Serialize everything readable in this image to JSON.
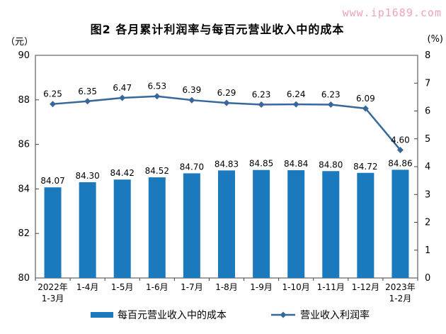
{
  "watermark": "www.ip1689.com",
  "title": "图2 各月累计利润率与每百元营业收入中的成本",
  "legend": {
    "bar_label": "每百元营业收入中的成本",
    "line_label": "营业收入利润率"
  },
  "colors": {
    "bar": "#1b7abe",
    "line": "#38689b",
    "axis": "#404040",
    "text": "#000000",
    "watermark": "#f2a3b3"
  },
  "chart_data": {
    "type": "combo",
    "title": "图2 各月累计利润率与每百元营业收入中的成本",
    "categories": [
      "2022年\n1-3月",
      "1-4月",
      "1-5月",
      "1-6月",
      "1-7月",
      "1-8月",
      "1-9月",
      "1-10月",
      "1-11月",
      "1-12月",
      "2023年\n1-2月"
    ],
    "series": [
      {
        "name": "每百元营业收入中的成本",
        "type": "bar",
        "axis": "left",
        "values": [
          84.07,
          84.3,
          84.42,
          84.52,
          84.7,
          84.83,
          84.85,
          84.84,
          84.8,
          84.72,
          84.86
        ]
      },
      {
        "name": "营业收入利润率",
        "type": "line",
        "axis": "right",
        "values": [
          6.25,
          6.35,
          6.47,
          6.53,
          6.39,
          6.29,
          6.23,
          6.24,
          6.23,
          6.09,
          4.6
        ]
      }
    ],
    "left_axis": {
      "unit": "（元）",
      "min": 80,
      "max": 90,
      "ticks": [
        90,
        88,
        86,
        84,
        82,
        80
      ]
    },
    "right_axis": {
      "unit": "(%)",
      "min": 0,
      "max": 8,
      "ticks": [
        8,
        7,
        6,
        5,
        4,
        3,
        2,
        1,
        0
      ]
    },
    "grid": false,
    "legend_position": "bottom"
  }
}
